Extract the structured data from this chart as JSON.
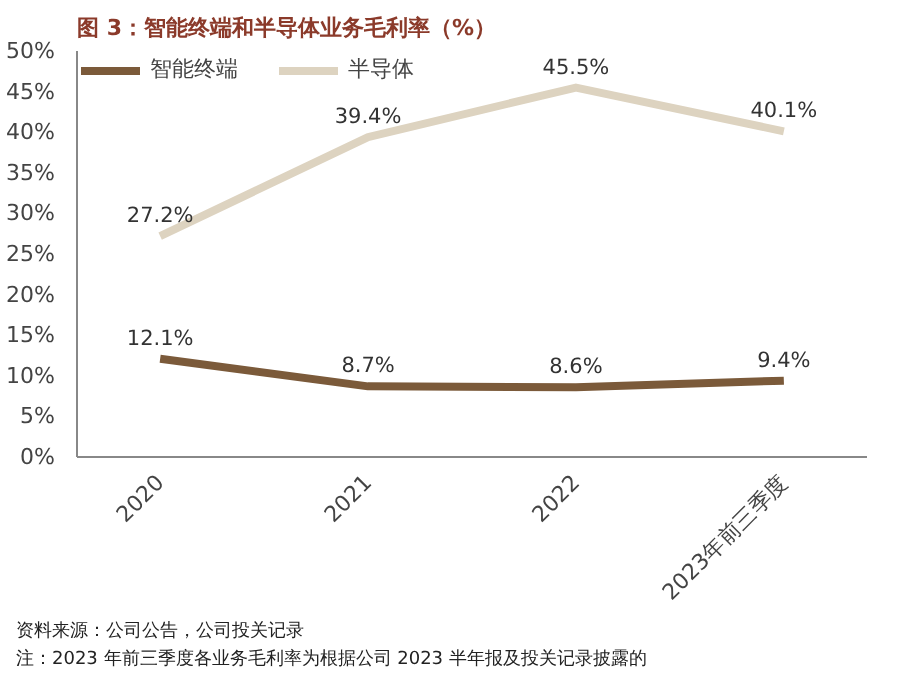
{
  "chart_data": {
    "type": "line",
    "title": "图 3：智能终端和半导体业务毛利率（%）",
    "categories": [
      "2020",
      "2021",
      "2022",
      "2023年前三季度"
    ],
    "series": [
      {
        "name": "智能终端",
        "color": "#7b5a3a",
        "values": [
          12.1,
          8.7,
          8.6,
          9.4
        ],
        "value_labels": [
          "12.1%",
          "8.7%",
          "8.6%",
          "9.4%"
        ]
      },
      {
        "name": "半导体",
        "color": "#ddd3c0",
        "values": [
          27.2,
          39.4,
          45.5,
          40.1
        ],
        "value_labels": [
          "27.2%",
          "39.4%",
          "45.5%",
          "40.1%"
        ]
      }
    ],
    "ylim": [
      0,
      50
    ],
    "yticks": [
      {
        "value": 0,
        "label": "0%"
      },
      {
        "value": 5,
        "label": "5%"
      },
      {
        "value": 10,
        "label": "10%"
      },
      {
        "value": 15,
        "label": "15%"
      },
      {
        "value": 20,
        "label": "20%"
      },
      {
        "value": 25,
        "label": "25%"
      },
      {
        "value": 30,
        "label": "30%"
      },
      {
        "value": 35,
        "label": "35%"
      },
      {
        "value": 40,
        "label": "40%"
      },
      {
        "value": 45,
        "label": "45%"
      },
      {
        "value": 50,
        "label": "50%"
      }
    ],
    "legend": "top",
    "grid": false,
    "marker": "none",
    "line_style": "solid",
    "annotations": [
      "资料来源：公司公告，公司投关记录",
      "注：2023 年前三季度各业务毛利率为根据公司 2023 半年报及投关记录披露的"
    ]
  }
}
